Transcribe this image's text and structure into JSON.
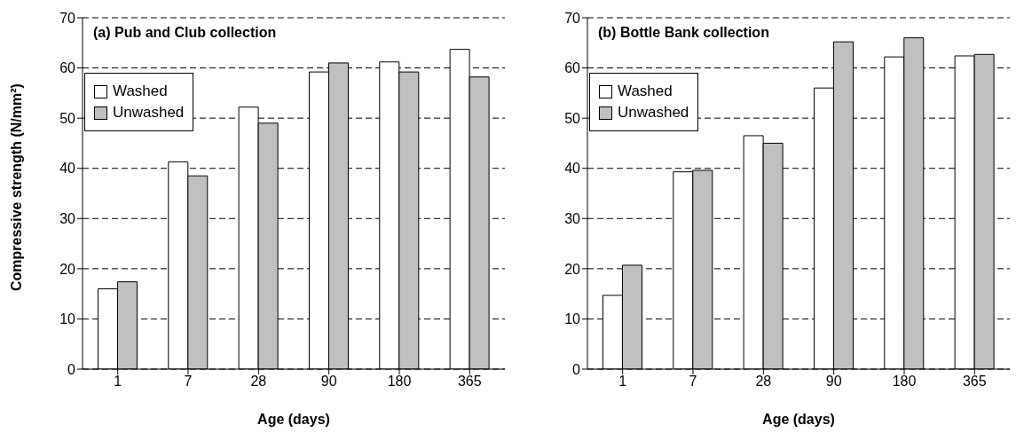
{
  "chart_data": [
    {
      "type": "bar",
      "title": "(a) Pub and Club collection",
      "xlabel": "Age (days)",
      "ylabel": "Compressive strength (N/mm²)",
      "categories": [
        "1",
        "7",
        "28",
        "90",
        "180",
        "365"
      ],
      "series": [
        {
          "name": "Washed",
          "color": "#ffffff",
          "values": [
            16,
            41.3,
            52.2,
            59.2,
            61.2,
            63.7
          ]
        },
        {
          "name": "Unwashed",
          "color": "#c0c0c0",
          "values": [
            17.4,
            38.5,
            49,
            61,
            59.2,
            58.2
          ]
        }
      ],
      "ylim": [
        0,
        70
      ],
      "yticks": [
        0,
        10,
        20,
        30,
        40,
        50,
        60,
        70
      ],
      "grid": "y",
      "legend": "top left"
    },
    {
      "type": "bar",
      "title": "(b) Bottle Bank collection",
      "xlabel": "Age (days)",
      "categories": [
        "1",
        "7",
        "28",
        "90",
        "180",
        "365"
      ],
      "series": [
        {
          "name": "Washed",
          "color": "#ffffff",
          "values": [
            14.7,
            39.3,
            46.5,
            56,
            62.2,
            62.4
          ]
        },
        {
          "name": "Unwashed",
          "color": "#c0c0c0",
          "values": [
            20.7,
            39.6,
            45,
            65.2,
            66,
            62.7
          ]
        }
      ],
      "ylim": [
        0,
        70
      ],
      "yticks": [
        0,
        10,
        20,
        30,
        40,
        50,
        60,
        70
      ],
      "grid": "y",
      "legend": "top left"
    }
  ]
}
